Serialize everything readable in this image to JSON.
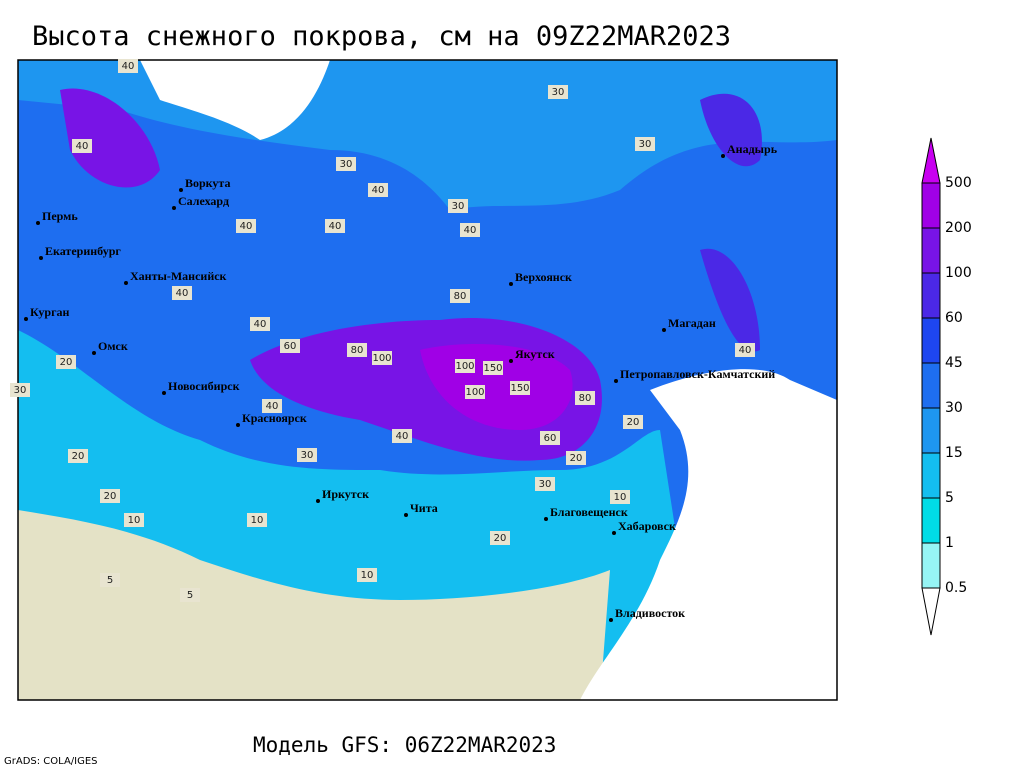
{
  "header": {
    "title": "Высота снежного покрова, см на 09Z22MAR2023"
  },
  "map": {
    "cities": [
      "Воркута",
      "Салехард",
      "Пермь",
      "Екатеринбург",
      "Ханты-Мансийск",
      "Курган",
      "Омск",
      "Новосибирск",
      "Красноярск",
      "Иркутск",
      "Чита",
      "Верхоянск",
      "Якутск",
      "Магадан",
      "Анадырь",
      "Петропавловск-Камчатский",
      "Благовещенск",
      "Хабаровск",
      "Владивосток"
    ],
    "contour_labels": [
      "40",
      "30",
      "30",
      "40",
      "40",
      "30",
      "40",
      "30",
      "40",
      "40",
      "20",
      "40",
      "60",
      "80",
      "80",
      "100",
      "100",
      "150",
      "150",
      "100",
      "80",
      "40",
      "20",
      "40",
      "30",
      "20",
      "20",
      "10",
      "10",
      "5",
      "5",
      "20",
      "30",
      "10",
      "40",
      "60",
      "40",
      "20",
      "30",
      "10"
    ]
  },
  "legend": {
    "levels": [
      "500",
      "200",
      "100",
      "60",
      "45",
      "30",
      "15",
      "5",
      "1",
      "0.5"
    ],
    "colors": [
      "#c800f0",
      "#a000e6",
      "#7814e6",
      "#4b28e6",
      "#1e46f0",
      "#1e6ef0",
      "#1e96f0",
      "#14bef0",
      "#00dce6",
      "#96f5f5",
      "#ffffff"
    ]
  },
  "footer": {
    "model": "Модель GFS: 06Z22MAR2023",
    "credit": "GrADS: COLA/IGES"
  }
}
